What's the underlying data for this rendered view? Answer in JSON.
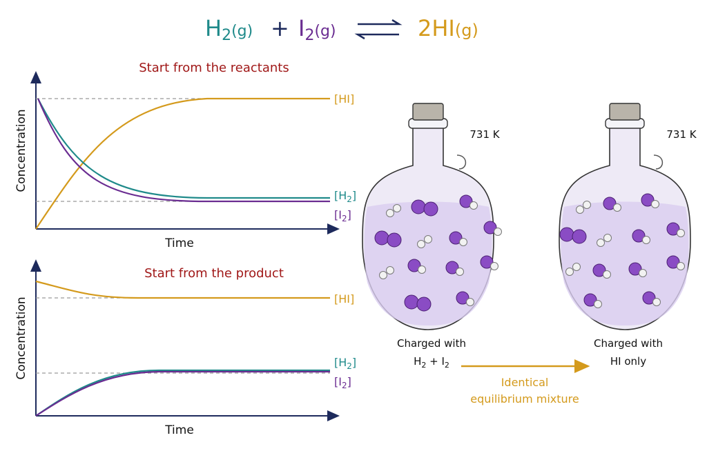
{
  "equation": {
    "h2": {
      "symbol": "H",
      "subscript": "2",
      "state": "(g)"
    },
    "plus": "+",
    "i2": {
      "symbol": "I",
      "subscript": "2",
      "state": "(g)"
    },
    "hi": {
      "formula": "2HI",
      "state": "(g)"
    }
  },
  "graphs": [
    {
      "title": "Start from the reactants",
      "y_label": "Concentration",
      "x_label": "Time",
      "hi_label": "[HI]",
      "h2_label": {
        "open": "[H",
        "subscript": "2",
        "close": "]"
      },
      "i2_label": {
        "open": "[I",
        "subscript": "2",
        "close": "]"
      }
    },
    {
      "title": "Start from the product",
      "y_label": "Concentration",
      "x_label": "Time",
      "hi_label": "[HI]",
      "h2_label": {
        "open": "[H",
        "subscript": "2",
        "close": "]"
      },
      "i2_label": {
        "open": "[I",
        "subscript": "2",
        "close": "]"
      }
    }
  ],
  "flasks": [
    {
      "temperature": "731 K",
      "caption_line1": "Charged with",
      "caption_line2": {
        "a": "H",
        "a_sub": "2",
        "mid": " + I",
        "b_sub": "2"
      }
    },
    {
      "temperature": "731 K",
      "caption_line1": "Charged with",
      "caption_line2_text": "HI only"
    }
  ],
  "arrow_label": {
    "line1": "Identical",
    "line2": "equilibrium mixture"
  }
}
